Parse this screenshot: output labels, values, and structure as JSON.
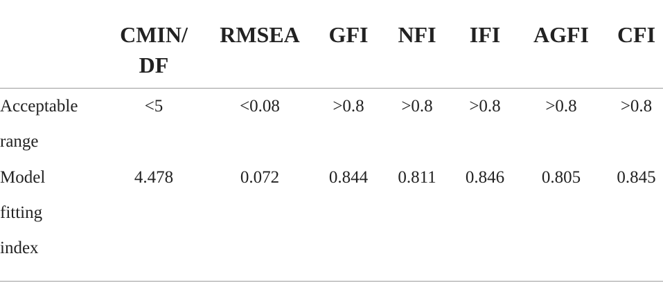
{
  "columns": [
    "CMIN/\nDF",
    "RMSEA",
    "GFI",
    "NFI",
    "IFI",
    "AGFI",
    "CFI"
  ],
  "rows": [
    {
      "label": "Acceptable\nrange",
      "values": [
        "<5",
        "<0.08",
        ">0.8",
        ">0.8",
        ">0.8",
        ">0.8",
        ">0.8"
      ]
    },
    {
      "label": "Model\nfitting\nindex",
      "values": [
        "4.478",
        "0.072",
        "0.844",
        "0.811",
        "0.846",
        "0.805",
        "0.845"
      ]
    }
  ]
}
